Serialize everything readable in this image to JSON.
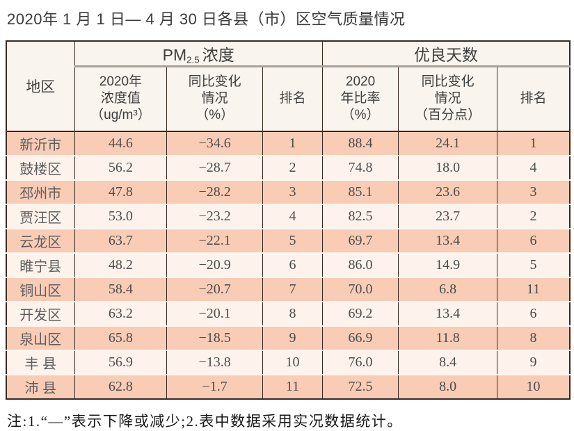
{
  "page": {
    "title": "2020年 1 月 1 日— 4 月 30 日各县（市）区空气质量情况",
    "note": "注:1.“—”表示下降或减少;2.表中数据采用实况数据统计。"
  },
  "table": {
    "header": {
      "region": "地区",
      "pm_group": {
        "prefix": "PM",
        "subscript": "2.5",
        "suffix": "浓度"
      },
      "days_group": "优良天数",
      "pm_value": "2020年\n浓度值\n（ug/m³）",
      "pm_change": "同比变化\n情况\n（%）",
      "pm_rank": "排名",
      "days_ratio": "2020\n年比率\n（%）",
      "days_change": "同比变化\n情况\n（百分点）",
      "days_rank": "排名"
    },
    "rows": [
      {
        "region": "新沂市",
        "pm_value": "44.6",
        "pm_change": "−34.6",
        "pm_rank": "1",
        "days_ratio": "88.4",
        "days_change": "24.1",
        "days_rank": "1"
      },
      {
        "region": "鼓楼区",
        "pm_value": "56.2",
        "pm_change": "−28.7",
        "pm_rank": "2",
        "days_ratio": "74.8",
        "days_change": "18.0",
        "days_rank": "4"
      },
      {
        "region": "邳州市",
        "pm_value": "47.8",
        "pm_change": "−28.2",
        "pm_rank": "3",
        "days_ratio": "85.1",
        "days_change": "23.6",
        "days_rank": "3"
      },
      {
        "region": "贾汪区",
        "pm_value": "53.0",
        "pm_change": "−23.2",
        "pm_rank": "4",
        "days_ratio": "82.5",
        "days_change": "23.7",
        "days_rank": "2"
      },
      {
        "region": "云龙区",
        "pm_value": "63.7",
        "pm_change": "−22.1",
        "pm_rank": "5",
        "days_ratio": "69.7",
        "days_change": "13.4",
        "days_rank": "6"
      },
      {
        "region": "睢宁县",
        "pm_value": "48.2",
        "pm_change": "−20.9",
        "pm_rank": "6",
        "days_ratio": "86.0",
        "days_change": "14.9",
        "days_rank": "5"
      },
      {
        "region": "铜山区",
        "pm_value": "58.4",
        "pm_change": "−20.7",
        "pm_rank": "7",
        "days_ratio": "70.0",
        "days_change": "6.8",
        "days_rank": "11"
      },
      {
        "region": "开发区",
        "pm_value": "63.2",
        "pm_change": "−20.1",
        "pm_rank": "8",
        "days_ratio": "69.2",
        "days_change": "13.4",
        "days_rank": "6"
      },
      {
        "region": "泉山区",
        "pm_value": "65.8",
        "pm_change": "−18.5",
        "pm_rank": "9",
        "days_ratio": "66.9",
        "days_change": "11.8",
        "days_rank": "8"
      },
      {
        "region": "丰 县",
        "pm_value": "56.9",
        "pm_change": "−13.8",
        "pm_rank": "10",
        "days_ratio": "76.0",
        "days_change": "8.4",
        "days_rank": "9"
      },
      {
        "region": "沛 县",
        "pm_value": "62.8",
        "pm_change": "−1.7",
        "pm_rank": "11",
        "days_ratio": "72.5",
        "days_change": "8.0",
        "days_rank": "10"
      }
    ],
    "colors": {
      "row_odd": "#f9ccb6",
      "row_even": "#fdf2ec",
      "header_bg": "#faf4ee",
      "border_dark": "#372a21",
      "separator_light": "#fef6f0",
      "group_underline": "#a6a19b"
    }
  }
}
